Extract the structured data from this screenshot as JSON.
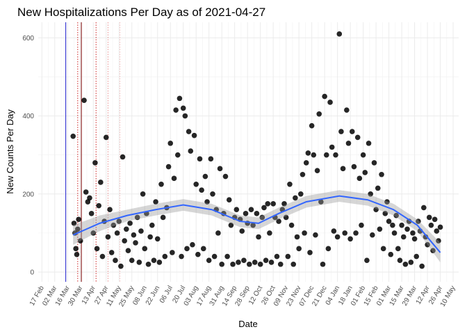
{
  "chart_data": {
    "type": "scatter",
    "title": "New Hospitalizations Per Day as of 2021-04-27",
    "x_label": "Date",
    "y_label": "New Counts Per Day",
    "xlim": [
      "2020-02-13",
      "2021-05-16"
    ],
    "ylim": [
      -25,
      640
    ],
    "yticks": [
      0,
      200,
      400,
      600
    ],
    "y_minor_ticks": [
      100,
      300,
      500
    ],
    "grid": true,
    "xticks": [
      {
        "value": "2020-02-17",
        "label": "17 Feb"
      },
      {
        "value": "2020-03-02",
        "label": "02 Mar"
      },
      {
        "value": "2020-03-16",
        "label": "16 Mar"
      },
      {
        "value": "2020-03-30",
        "label": "30 Mar"
      },
      {
        "value": "2020-04-13",
        "label": "13 Apr"
      },
      {
        "value": "2020-04-27",
        "label": "27 Apr"
      },
      {
        "value": "2020-05-11",
        "label": "11 May"
      },
      {
        "value": "2020-05-25",
        "label": "25 May"
      },
      {
        "value": "2020-06-08",
        "label": "08 Jun"
      },
      {
        "value": "2020-06-22",
        "label": "22 Jun"
      },
      {
        "value": "2020-07-06",
        "label": "06 Jul"
      },
      {
        "value": "2020-07-20",
        "label": "20 Jul"
      },
      {
        "value": "2020-08-03",
        "label": "03 Aug"
      },
      {
        "value": "2020-08-17",
        "label": "17 Aug"
      },
      {
        "value": "2020-08-31",
        "label": "31 Aug"
      },
      {
        "value": "2020-09-14",
        "label": "14 Sep"
      },
      {
        "value": "2020-09-28",
        "label": "28 Sep"
      },
      {
        "value": "2020-10-12",
        "label": "12 Oct"
      },
      {
        "value": "2020-10-26",
        "label": "26 Oct"
      },
      {
        "value": "2020-11-09",
        "label": "09 Nov"
      },
      {
        "value": "2020-11-23",
        "label": "23 Nov"
      },
      {
        "value": "2020-12-07",
        "label": "07 Dec"
      },
      {
        "value": "2020-12-21",
        "label": "21 Dec"
      },
      {
        "value": "2021-01-04",
        "label": "04 Jan"
      },
      {
        "value": "2021-01-18",
        "label": "18 Jan"
      },
      {
        "value": "2021-02-01",
        "label": "01 Feb"
      },
      {
        "value": "2021-02-15",
        "label": "15 Feb"
      },
      {
        "value": "2021-03-01",
        "label": "01 Mar"
      },
      {
        "value": "2021-03-15",
        "label": "15 Mar"
      },
      {
        "value": "2021-03-29",
        "label": "29 Mar"
      },
      {
        "value": "2021-04-12",
        "label": "12 Apr"
      },
      {
        "value": "2021-04-26",
        "label": "26 Apr"
      },
      {
        "value": "2021-05-10",
        "label": "10 May"
      }
    ],
    "vlines": [
      {
        "x": "2020-03-14",
        "color": "#1a1acc",
        "style": "solid"
      },
      {
        "x": "2020-03-27",
        "color": "#cc2222",
        "style": "dotted"
      },
      {
        "x": "2020-03-31",
        "color": "#7a0000",
        "style": "solid"
      },
      {
        "x": "2020-04-16",
        "color": "#cc2222",
        "style": "dotted"
      },
      {
        "x": "2020-04-29",
        "color": "#e89090",
        "style": "dotted"
      },
      {
        "x": "2020-05-12",
        "color": "#f2b8b8",
        "style": "dotted"
      }
    ],
    "series": [
      {
        "color": "#000000",
        "x": [
          "2020-03-22",
          "2020-03-23",
          "2020-03-24",
          "2020-03-25",
          "2020-03-26",
          "2020-03-27",
          "2020-03-28",
          "2020-03-30",
          "2020-04-03",
          "2020-04-05",
          "2020-04-07",
          "2020-04-09",
          "2020-04-11",
          "2020-04-13",
          "2020-04-15",
          "2020-04-17",
          "2020-04-19",
          "2020-04-21",
          "2020-04-23",
          "2020-04-25",
          "2020-04-27",
          "2020-04-29",
          "2020-05-01",
          "2020-05-03",
          "2020-05-05",
          "2020-05-07",
          "2020-05-09",
          "2020-05-11",
          "2020-05-13",
          "2020-05-15",
          "2020-05-17",
          "2020-05-19",
          "2020-05-21",
          "2020-05-23",
          "2020-05-25",
          "2020-05-27",
          "2020-05-29",
          "2020-05-31",
          "2020-06-02",
          "2020-06-04",
          "2020-06-06",
          "2020-06-08",
          "2020-06-10",
          "2020-06-12",
          "2020-06-14",
          "2020-06-16",
          "2020-06-18",
          "2020-06-20",
          "2020-06-22",
          "2020-06-24",
          "2020-06-26",
          "2020-06-28",
          "2020-06-30",
          "2020-07-02",
          "2020-07-04",
          "2020-07-06",
          "2020-07-08",
          "2020-07-10",
          "2020-07-12",
          "2020-07-14",
          "2020-07-16",
          "2020-07-18",
          "2020-07-20",
          "2020-07-22",
          "2020-07-24",
          "2020-07-26",
          "2020-07-28",
          "2020-07-30",
          "2020-08-01",
          "2020-08-03",
          "2020-08-05",
          "2020-08-07",
          "2020-08-09",
          "2020-08-11",
          "2020-08-13",
          "2020-08-15",
          "2020-08-17",
          "2020-08-19",
          "2020-08-21",
          "2020-08-23",
          "2020-08-25",
          "2020-08-27",
          "2020-08-29",
          "2020-08-31",
          "2020-09-02",
          "2020-09-04",
          "2020-09-06",
          "2020-09-08",
          "2020-09-10",
          "2020-09-12",
          "2020-09-14",
          "2020-09-16",
          "2020-09-18",
          "2020-09-20",
          "2020-09-22",
          "2020-09-24",
          "2020-09-26",
          "2020-09-28",
          "2020-09-30",
          "2020-10-02",
          "2020-10-04",
          "2020-10-06",
          "2020-10-08",
          "2020-10-10",
          "2020-10-12",
          "2020-10-14",
          "2020-10-16",
          "2020-10-18",
          "2020-10-20",
          "2020-10-22",
          "2020-10-24",
          "2020-10-26",
          "2020-10-28",
          "2020-10-30",
          "2020-11-01",
          "2020-11-03",
          "2020-11-05",
          "2020-11-07",
          "2020-11-09",
          "2020-11-11",
          "2020-11-13",
          "2020-11-15",
          "2020-11-17",
          "2020-11-19",
          "2020-11-21",
          "2020-11-23",
          "2020-11-25",
          "2020-11-27",
          "2020-11-29",
          "2020-12-01",
          "2020-12-03",
          "2020-12-05",
          "2020-12-07",
          "2020-12-09",
          "2020-12-11",
          "2020-12-13",
          "2020-12-15",
          "2020-12-17",
          "2020-12-19",
          "2020-12-21",
          "2020-12-23",
          "2020-12-25",
          "2020-12-27",
          "2020-12-29",
          "2020-12-31",
          "2021-01-02",
          "2021-01-04",
          "2021-01-06",
          "2021-01-08",
          "2021-01-10",
          "2021-01-12",
          "2021-01-14",
          "2021-01-16",
          "2021-01-18",
          "2021-01-20",
          "2021-01-22",
          "2021-01-24",
          "2021-01-26",
          "2021-01-28",
          "2021-01-30",
          "2021-02-01",
          "2021-02-03",
          "2021-02-05",
          "2021-02-07",
          "2021-02-09",
          "2021-02-11",
          "2021-02-13",
          "2021-02-15",
          "2021-02-17",
          "2021-02-19",
          "2021-02-21",
          "2021-02-23",
          "2021-02-25",
          "2021-02-27",
          "2021-03-01",
          "2021-03-03",
          "2021-03-05",
          "2021-03-07",
          "2021-03-09",
          "2021-03-11",
          "2021-03-13",
          "2021-03-15",
          "2021-03-17",
          "2021-03-19",
          "2021-03-21",
          "2021-03-23",
          "2021-03-25",
          "2021-03-27",
          "2021-03-29",
          "2021-03-31",
          "2021-04-02",
          "2021-04-04",
          "2021-04-06",
          "2021-04-08",
          "2021-04-10",
          "2021-04-12",
          "2021-04-14",
          "2021-04-16",
          "2021-04-18",
          "2021-04-20",
          "2021-04-22",
          "2021-04-24",
          "2021-04-26"
        ],
        "values": [
          348,
          125,
          100,
          60,
          45,
          110,
          135,
          80,
          440,
          205,
          180,
          190,
          150,
          100,
          280,
          60,
          170,
          230,
          40,
          130,
          345,
          90,
          160,
          50,
          120,
          30,
          100,
          130,
          15,
          295,
          80,
          110,
          55,
          125,
          30,
          95,
          75,
          140,
          25,
          105,
          200,
          60,
          150,
          20,
          90,
          120,
          30,
          180,
          85,
          25,
          225,
          140,
          40,
          165,
          270,
          330,
          50,
          240,
          415,
          300,
          445,
          40,
          420,
          400,
          60,
          360,
          310,
          70,
          350,
          225,
          45,
          290,
          210,
          60,
          245,
          180,
          30,
          290,
          200,
          40,
          160,
          100,
          265,
          20,
          150,
          245,
          40,
          185,
          120,
          20,
          140,
          160,
          25,
          135,
          105,
          30,
          150,
          125,
          20,
          160,
          120,
          25,
          150,
          90,
          20,
          140,
          165,
          30,
          175,
          100,
          25,
          175,
          140,
          40,
          130,
          20,
          160,
          175,
          140,
          40,
          225,
          120,
          20,
          190,
          90,
          60,
          200,
          250,
          100,
          280,
          305,
          50,
          375,
          300,
          95,
          260,
          405,
          180,
          20,
          450,
          300,
          60,
          435,
          320,
          105,
          300,
          90,
          610,
          360,
          265,
          100,
          415,
          330,
          85,
          360,
          270,
          100,
          345,
          240,
          120,
          300,
          255,
          30,
          330,
          200,
          95,
          280,
          160,
          215,
          110,
          250,
          60,
          150,
          180,
          130,
          45,
          120,
          100,
          145,
          60,
          30,
          120,
          90,
          20,
          110,
          130,
          25,
          100,
          85,
          40,
          130,
          105,
          15,
          165,
          90,
          70,
          140,
          120,
          55,
          135,
          105,
          80,
          115
        ]
      }
    ],
    "smooth": {
      "color": "#3366ff",
      "band_color": "#999999",
      "x": [
        "2020-03-22",
        "2020-04-20",
        "2020-05-20",
        "2020-06-20",
        "2020-07-20",
        "2020-08-20",
        "2020-09-20",
        "2020-10-10",
        "2020-11-01",
        "2020-12-01",
        "2021-01-06",
        "2021-02-06",
        "2021-03-06",
        "2021-04-01",
        "2021-04-26"
      ],
      "values": [
        95,
        125,
        145,
        160,
        172,
        160,
        130,
        125,
        150,
        180,
        195,
        185,
        160,
        120,
        50
      ],
      "lower": [
        70,
        105,
        130,
        145,
        157,
        145,
        115,
        110,
        135,
        165,
        180,
        170,
        145,
        105,
        25
      ],
      "upper": [
        120,
        145,
        160,
        175,
        187,
        175,
        145,
        140,
        165,
        195,
        210,
        200,
        175,
        135,
        75
      ]
    }
  }
}
